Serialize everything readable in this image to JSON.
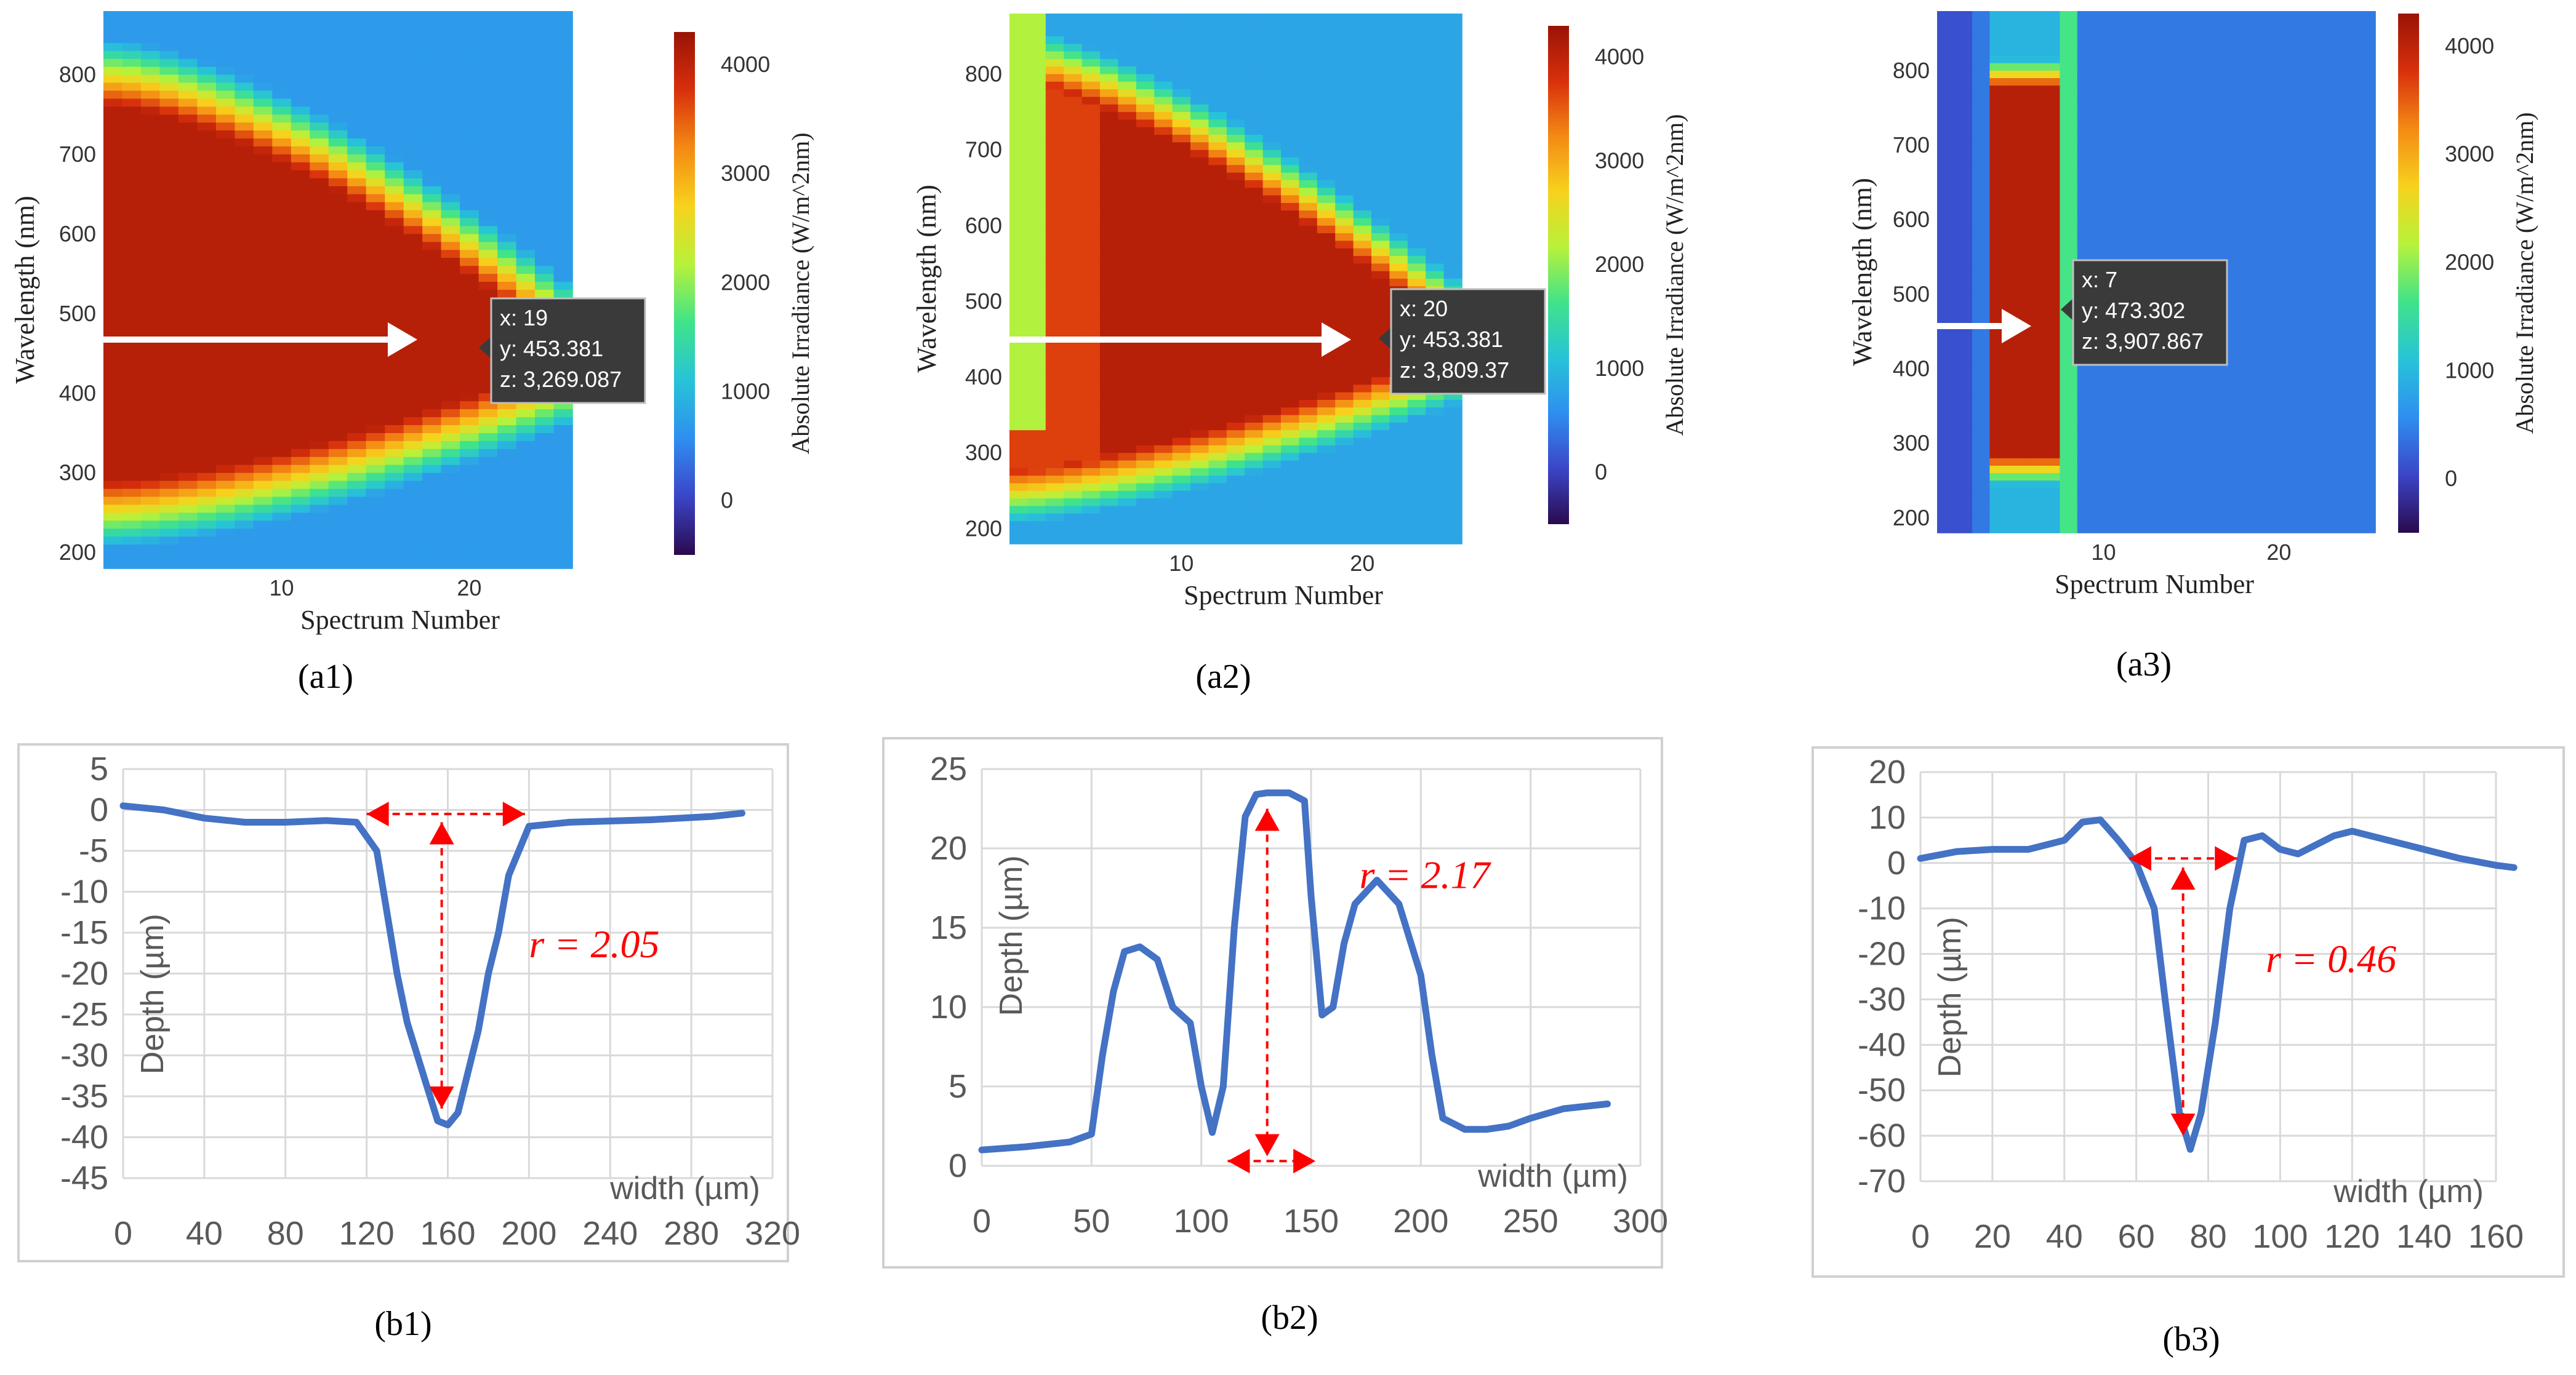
{
  "colorbar_gradient": [
    "#2a0a4e",
    "#3b45c8",
    "#2f8ef0",
    "#27c3d8",
    "#3fe38a",
    "#b8f23a",
    "#f7d21c",
    "#f48a14",
    "#d8300c",
    "#9a1306"
  ],
  "heatmaps": [
    {
      "id": "a1",
      "panel_label": "(a1)",
      "xlabel": "Spectrum Number",
      "ylabel": "Wavelength (nm)",
      "colorbar_label": "Absolute Irradiance (W/m^2nm)",
      "x_ticks": [
        "10",
        "20"
      ],
      "y_ticks": [
        "200",
        "300",
        "400",
        "500",
        "600",
        "700",
        "800"
      ],
      "cb_ticks": [
        "0",
        "1000",
        "2000",
        "3000",
        "4000"
      ],
      "tooltip": {
        "x": "x: 19",
        "y": "y: 453.381",
        "z": "z: 3,269.087"
      }
    },
    {
      "id": "a2",
      "panel_label": "(a2)",
      "xlabel": "Spectrum Number",
      "ylabel": "Wavelength (nm)",
      "colorbar_label": "Absolute Irradiance (W/m^2nm)",
      "x_ticks": [
        "10",
        "20"
      ],
      "y_ticks": [
        "200",
        "300",
        "400",
        "500",
        "600",
        "700",
        "800"
      ],
      "cb_ticks": [
        "0",
        "1000",
        "2000",
        "3000",
        "4000"
      ],
      "tooltip": {
        "x": "x: 20",
        "y": "y: 453.381",
        "z": "z: 3,809.37"
      }
    },
    {
      "id": "a3",
      "panel_label": "(a3)",
      "xlabel": "Spectrum Number",
      "ylabel": "Wavelength (nm)",
      "colorbar_label": "Absolute Irradiance (W/m^2nm)",
      "x_ticks": [
        "10",
        "20"
      ],
      "y_ticks": [
        "200",
        "300",
        "400",
        "500",
        "600",
        "700",
        "800"
      ],
      "cb_ticks": [
        "0",
        "1000",
        "2000",
        "3000",
        "4000"
      ],
      "tooltip": {
        "x": "x: 7",
        "y": "y: 473.302",
        "z": "z: 3,907.867"
      }
    }
  ],
  "chart_data": [
    {
      "type": "line",
      "id": "b1",
      "panel_label": "(b1)",
      "ylabel": "Depth (µm)",
      "xlabel": "width (µm)",
      "xlim": [
        0,
        320
      ],
      "ylim": [
        -45,
        5
      ],
      "x_ticks": [
        0,
        40,
        80,
        120,
        160,
        200,
        240,
        280,
        320
      ],
      "y_ticks": [
        5,
        0,
        -5,
        -10,
        -15,
        -20,
        -25,
        -30,
        -35,
        -40,
        -45
      ],
      "annotation": "r = 2.05",
      "series": [
        {
          "color": "#4472c4",
          "x": [
            0,
            20,
            40,
            60,
            80,
            100,
            115,
            125,
            135,
            140,
            145,
            150,
            155,
            160,
            165,
            170,
            175,
            180,
            185,
            190,
            200,
            220,
            260,
            290,
            305
          ],
          "y": [
            0.5,
            0,
            -1,
            -1.5,
            -1.5,
            -1.3,
            -1.5,
            -5,
            -20,
            -26,
            -30,
            -34,
            -38,
            -38.5,
            -37,
            -32,
            -27,
            -20,
            -15,
            -8,
            -2,
            -1.5,
            -1.2,
            -0.8,
            -0.4
          ]
        }
      ]
    },
    {
      "type": "line",
      "id": "b2",
      "panel_label": "(b2)",
      "ylabel": "Depth (µm)",
      "xlabel": "width (µm)",
      "xlim": [
        0,
        300
      ],
      "ylim": [
        0,
        25
      ],
      "x_ticks": [
        0,
        50,
        100,
        150,
        200,
        250,
        300
      ],
      "y_ticks": [
        0,
        5,
        10,
        15,
        20,
        25
      ],
      "annotation": "r = 2.17",
      "series": [
        {
          "color": "#4472c4",
          "x": [
            0,
            20,
            40,
            50,
            55,
            60,
            65,
            72,
            80,
            87,
            95,
            100,
            105,
            110,
            115,
            120,
            125,
            130,
            140,
            147,
            150,
            155,
            160,
            165,
            170,
            180,
            190,
            200,
            205,
            210,
            220,
            230,
            240,
            250,
            265,
            285
          ],
          "y": [
            1,
            1.2,
            1.5,
            2,
            7,
            11,
            13.5,
            13.8,
            13,
            10,
            9,
            5,
            2.1,
            5,
            15,
            22,
            23.4,
            23.5,
            23.5,
            23,
            17,
            9.5,
            10,
            14,
            16.5,
            18,
            16.5,
            12,
            7,
            3,
            2.3,
            2.3,
            2.5,
            3,
            3.6,
            3.9
          ]
        }
      ]
    },
    {
      "type": "line",
      "id": "b3",
      "panel_label": "(b3)",
      "ylabel": "Depth (µm)",
      "xlabel": "width (µm)",
      "xlim": [
        0,
        160
      ],
      "ylim": [
        -70,
        20
      ],
      "x_ticks": [
        0,
        20,
        40,
        60,
        80,
        100,
        120,
        140,
        160
      ],
      "y_ticks": [
        20,
        10,
        0,
        -10,
        -20,
        -30,
        -40,
        -50,
        -60,
        -70
      ],
      "annotation": "r = 0.46",
      "series": [
        {
          "color": "#4472c4",
          "x": [
            0,
            10,
            20,
            30,
            40,
            45,
            50,
            55,
            60,
            65,
            68,
            72,
            75,
            78,
            82,
            86,
            90,
            95,
            100,
            105,
            110,
            115,
            120,
            130,
            140,
            150,
            160,
            165
          ],
          "y": [
            1,
            2.5,
            3,
            3,
            5,
            9,
            9.5,
            5,
            0,
            -10,
            -30,
            -55,
            -63,
            -55,
            -35,
            -10,
            5,
            6,
            3,
            2,
            4,
            6,
            7,
            5,
            3,
            1,
            -0.5,
            -1
          ]
        }
      ]
    }
  ]
}
